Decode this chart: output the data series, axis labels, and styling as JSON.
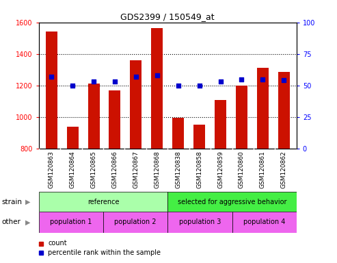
{
  "title": "GDS2399 / 150549_at",
  "categories": [
    "GSM120863",
    "GSM120864",
    "GSM120865",
    "GSM120866",
    "GSM120867",
    "GSM120868",
    "GSM120838",
    "GSM120858",
    "GSM120859",
    "GSM120860",
    "GSM120861",
    "GSM120862"
  ],
  "count_values": [
    1540,
    940,
    1210,
    1170,
    1360,
    1565,
    995,
    950,
    1110,
    1200,
    1310,
    1285
  ],
  "percentile_values": [
    57,
    50,
    53,
    53,
    57,
    58,
    50,
    50,
    53,
    55,
    55,
    54
  ],
  "bar_color": "#CC1100",
  "dot_color": "#0000CC",
  "ylim_left": [
    800,
    1600
  ],
  "ylim_right": [
    0,
    100
  ],
  "yticks_left": [
    800,
    1000,
    1200,
    1400,
    1600
  ],
  "yticks_right": [
    0,
    25,
    50,
    75,
    100
  ],
  "grid_lines": [
    1000,
    1200,
    1400
  ],
  "strain_groups": [
    {
      "label": "reference",
      "start": 0,
      "end": 6,
      "color": "#AAFFAA"
    },
    {
      "label": "selected for aggressive behavior",
      "start": 6,
      "end": 12,
      "color": "#44EE44"
    }
  ],
  "other_groups": [
    {
      "label": "population 1",
      "start": 0,
      "end": 3
    },
    {
      "label": "population 2",
      "start": 3,
      "end": 6
    },
    {
      "label": "population 3",
      "start": 6,
      "end": 9
    },
    {
      "label": "population 4",
      "start": 9,
      "end": 12
    }
  ],
  "other_color": "#EE66EE",
  "strain_label": "strain",
  "other_label": "other",
  "legend_count_label": "count",
  "legend_pct_label": "percentile rank within the sample",
  "bg_color": "#FFFFFF",
  "xtick_bg_color": "#CCCCCC",
  "bar_width": 0.55
}
